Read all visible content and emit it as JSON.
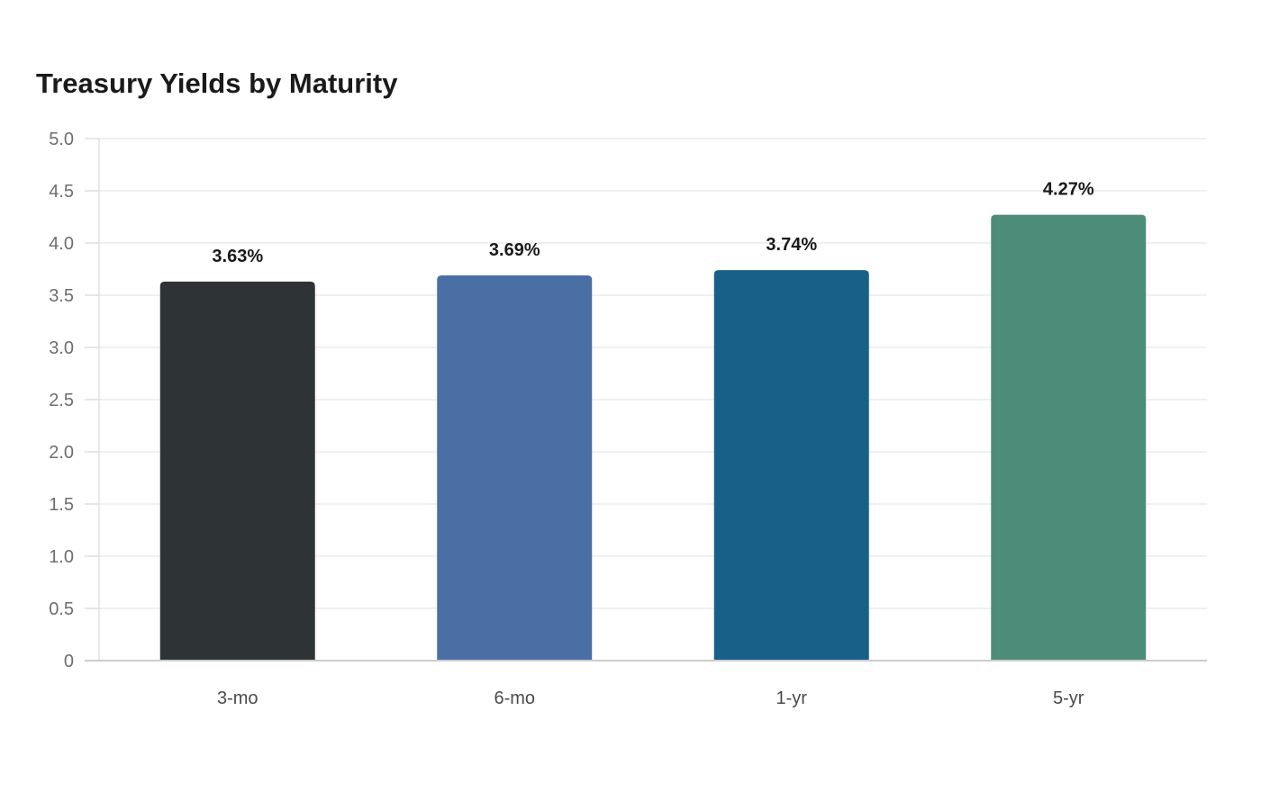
{
  "chart_data": {
    "type": "bar",
    "title": "Treasury Yields by Maturity",
    "xlabel": "",
    "ylabel": "",
    "categories": [
      "3-mo",
      "6-mo",
      "1-yr",
      "5-yr"
    ],
    "values": [
      3.63,
      3.69,
      3.74,
      4.27
    ],
    "value_labels": [
      "3.63%",
      "3.69%",
      "3.74%",
      "4.27%"
    ],
    "colors": [
      "#2e3436",
      "#4a6fa5",
      "#186088",
      "#4e8c7a"
    ],
    "ylim": [
      0,
      5
    ],
    "yticks": [
      0,
      0.5,
      1,
      1.5,
      2,
      2.5,
      3,
      3.5,
      4,
      4.5,
      5
    ],
    "ytick_labels": [
      "0",
      "0.5",
      "1.0",
      "1.5",
      "2.0",
      "2.5",
      "3.0",
      "3.5",
      "4.0",
      "4.5",
      "5.0"
    ],
    "grid": true,
    "legend": "none"
  }
}
